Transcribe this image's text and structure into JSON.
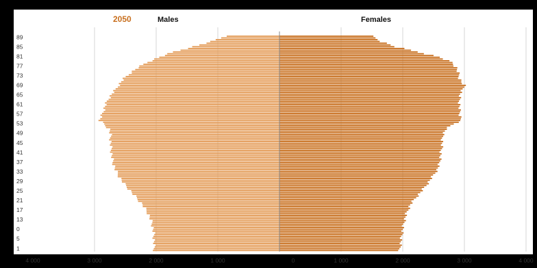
{
  "chart_data": {
    "type": "bar",
    "orientation": "horizontal",
    "subtype": "population-pyramid",
    "title": "2050",
    "series": [
      {
        "name": "Males",
        "color": "#e39a55"
      },
      {
        "name": "Females",
        "color": "#c86f1e"
      }
    ],
    "age_tick_labels": [
      "89",
      "85",
      "81",
      "77",
      "73",
      "69",
      "65",
      "61",
      "57",
      "53",
      "49",
      "45",
      "41",
      "37",
      "33",
      "29",
      "25",
      "21",
      "17",
      "13",
      "0",
      "5",
      "1"
    ],
    "x_tick_labels": [
      "4 000",
      "3 000",
      "2 000",
      "1 000",
      "0",
      "1 000",
      "2 000",
      "3 000",
      "4 000"
    ],
    "xlim_males": [
      4000,
      0
    ],
    "xlim_females": [
      0,
      4000
    ],
    "grid": true,
    "legend": "top",
    "males_profile": [
      [
        0,
        880
      ],
      [
        3,
        1100
      ],
      [
        6,
        1400
      ],
      [
        9,
        1720
      ],
      [
        12,
        1950
      ],
      [
        15,
        2150
      ],
      [
        18,
        2300
      ],
      [
        21,
        2420
      ],
      [
        24,
        2520
      ],
      [
        27,
        2590
      ],
      [
        30,
        2650
      ],
      [
        33,
        2720
      ],
      [
        36,
        2780
      ],
      [
        39,
        2820
      ],
      [
        42,
        2850
      ],
      [
        45,
        2880
      ],
      [
        48,
        2920
      ],
      [
        50,
        2850
      ],
      [
        53,
        2760
      ],
      [
        56,
        2740
      ],
      [
        60,
        2740
      ],
      [
        64,
        2730
      ],
      [
        68,
        2720
      ],
      [
        72,
        2700
      ],
      [
        76,
        2660
      ],
      [
        80,
        2600
      ],
      [
        84,
        2520
      ],
      [
        88,
        2420
      ],
      [
        92,
        2320
      ],
      [
        96,
        2220
      ],
      [
        101,
        2130
      ],
      [
        106,
        2070
      ],
      [
        112,
        2040
      ],
      [
        122,
        2030
      ]
    ],
    "females_profile": [
      [
        0,
        1500
      ],
      [
        3,
        1650
      ],
      [
        6,
        1880
      ],
      [
        9,
        2250
      ],
      [
        12,
        2600
      ],
      [
        15,
        2800
      ],
      [
        18,
        2870
      ],
      [
        21,
        2900
      ],
      [
        24,
        2920
      ],
      [
        26,
        2950
      ],
      [
        28,
        3000
      ],
      [
        30,
        2980
      ],
      [
        33,
        2930
      ],
      [
        36,
        2920
      ],
      [
        39,
        2920
      ],
      [
        42,
        2920
      ],
      [
        45,
        2930
      ],
      [
        48,
        2950
      ],
      [
        50,
        2820
      ],
      [
        53,
        2700
      ],
      [
        56,
        2650
      ],
      [
        60,
        2640
      ],
      [
        64,
        2630
      ],
      [
        68,
        2610
      ],
      [
        72,
        2600
      ],
      [
        76,
        2560
      ],
      [
        80,
        2480
      ],
      [
        84,
        2400
      ],
      [
        88,
        2310
      ],
      [
        92,
        2210
      ],
      [
        96,
        2120
      ],
      [
        101,
        2060
      ],
      [
        106,
        2020
      ],
      [
        112,
        1990
      ],
      [
        122,
        1950
      ]
    ]
  }
}
